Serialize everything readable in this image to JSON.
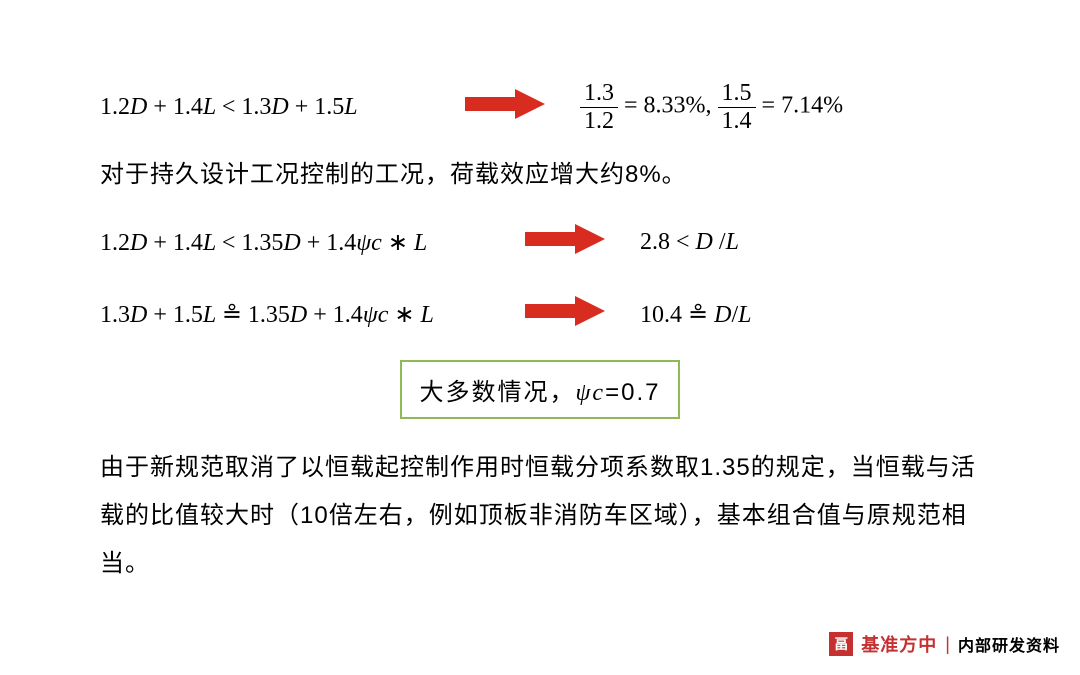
{
  "rows": [
    {
      "left_html": "<span class='n'>1.2</span>D <span class='n'>+ 1.4</span>L <span class='n'>&lt; 1.3</span>D <span class='n'>+ 1.5</span>L",
      "right_html": "<span class='frac'><span class='num'>1.3</span><span class='den'>1.2</span></span> <span class='n'>= 8.33%,</span> <span class='frac'><span class='num'>1.5</span><span class='den'>1.4</span></span> <span class='n'>= 7.14%</span>",
      "arrow_color": "#d82c20",
      "left_width": 330,
      "gap": 30
    },
    {
      "left_html": "<span class='n'>1.2</span>D <span class='n'>+ 1.4</span>L <span class='n'>&lt; 1.35</span>D <span class='n'>+ 1.4</span>&psi;c <span class='n'>&lowast;</span> L",
      "right_html": "<span class='n'>2.8 &lt;</span> D <span class='n'>/</span>L",
      "arrow_color": "#d82c20",
      "left_width": 390,
      "gap": 25
    },
    {
      "left_html": "<span class='n'>1.3</span>D <span class='n'>+ 1.5</span>L <span class='n'>&#8791; 1.35</span>D <span class='n'>+ 1.4</span>&psi;c <span class='n'>&lowast;</span> L",
      "right_html": "<span class='n'>10.4 &#8791;</span> D<span class='n'>/</span>L",
      "arrow_color": "#d82c20",
      "left_width": 390,
      "gap": 25
    }
  ],
  "text_line_1": "对于持久设计工况控制的工况，荷载效应增大约8%。",
  "box": {
    "text": "大多数情况，",
    "psi": "ψc",
    "val": "=0.7",
    "border_color": "#8fb955"
  },
  "paragraph": "由于新规范取消了以恒载起控制作用时恒载分项系数取1.35的规定，当恒载与活载的比值较大时（10倍左右，例如顶板非消防车区域），基本组合值与原规范相当。",
  "footer": {
    "logo_char": "畐",
    "brand": "基准方中",
    "tag": "内部研发资料"
  },
  "colors": {
    "text": "#000000",
    "arrow": "#d82c20",
    "box_border": "#8fb955",
    "brand": "#c53030"
  },
  "arrow_svg": {
    "width": 90,
    "height": 36
  }
}
